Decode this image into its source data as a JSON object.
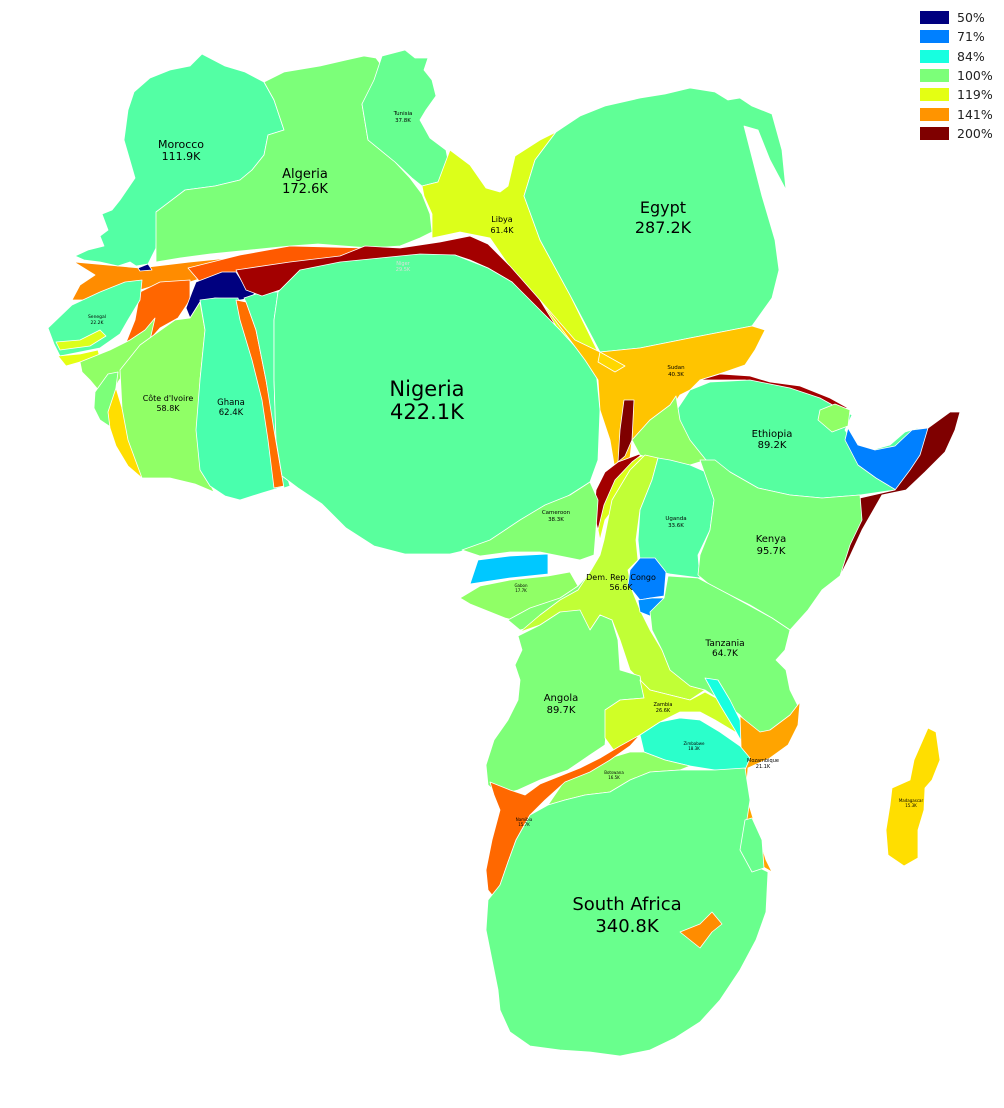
{
  "legend": {
    "items": [
      {
        "label": "50%",
        "color": "#00007f"
      },
      {
        "label": "71%",
        "color": "#0080ff"
      },
      {
        "label": "84%",
        "color": "#17ffe0"
      },
      {
        "label": "100%",
        "color": "#7cff79"
      },
      {
        "label": "119%",
        "color": "#e4ff13"
      },
      {
        "label": "141%",
        "color": "#ff9400"
      },
      {
        "label": "200%",
        "color": "#7f0000"
      }
    ]
  },
  "countries": [
    {
      "id": "nigeria",
      "name": "Nigeria",
      "value": "422.1K",
      "color": "#59ff9d"
    },
    {
      "id": "south-africa",
      "name": "South Africa",
      "value": "340.8K",
      "color": "#69ff8d"
    },
    {
      "id": "egypt",
      "name": "Egypt",
      "value": "287.2K",
      "color": "#60ff96"
    },
    {
      "id": "algeria",
      "name": "Algeria",
      "value": "172.6K",
      "color": "#7cff79"
    },
    {
      "id": "morocco",
      "name": "Morocco",
      "value": "111.9K",
      "color": "#53ffa4"
    },
    {
      "id": "kenya",
      "name": "Kenya",
      "value": "95.7K",
      "color": "#7cff79"
    },
    {
      "id": "angola",
      "name": "Angola",
      "value": "89.7K",
      "color": "#7eff78"
    },
    {
      "id": "ethiopia",
      "name": "Ethiopia",
      "value": "89.2K",
      "color": "#56ffa0"
    },
    {
      "id": "tanzania",
      "name": "Tanzania",
      "value": "64.7K",
      "color": "#7cff79"
    },
    {
      "id": "ghana",
      "name": "Ghana",
      "value": "62.4K",
      "color": "#49ffad"
    },
    {
      "id": "libya",
      "name": "Libya",
      "value": "61.4K",
      "color": "#dcff1a"
    },
    {
      "id": "cote-divoire",
      "name": "Côte d'Ivoire",
      "value": "58.8K",
      "color": "#90ff66"
    },
    {
      "id": "dr-congo",
      "name": "Dem. Rep. Congo",
      "value": "56.6K",
      "color": "#c1ff36"
    },
    {
      "id": "sudan",
      "name": "Sudan",
      "value": "40.3K",
      "color": "#ffc400"
    },
    {
      "id": "cameroon",
      "name": "Cameroon",
      "value": "38.3K",
      "color": "#83ff73"
    },
    {
      "id": "tunisia",
      "name": "Tunisia",
      "value": "37.8K",
      "color": "#66ff90"
    },
    {
      "id": "uganda",
      "name": "Uganda",
      "value": "33.6K",
      "color": "#53ffa4"
    },
    {
      "id": "niger",
      "name": "Niger",
      "value": "29.5K",
      "color": "#a30000"
    },
    {
      "id": "zambia",
      "name": "Zambia",
      "value": "26.6K",
      "color": "#d0ff26"
    },
    {
      "id": "senegal",
      "name": "Senegal",
      "value": "22.2K",
      "color": "#53ffa4"
    },
    {
      "id": "mozambique",
      "name": "Mozambique",
      "value": "21.1K",
      "color": "#ffa400"
    },
    {
      "id": "zimbabwe",
      "name": "Zimbabwe",
      "value": "18.3K",
      "color": "#2bffcb"
    },
    {
      "id": "gabon",
      "name": "Gabon",
      "value": "17.7K",
      "color": "#00c8ff"
    },
    {
      "id": "botswana",
      "name": "Botswana",
      "value": "16.5K",
      "color": "#90ff66"
    },
    {
      "id": "madagascar",
      "name": "Madagascar",
      "value": "15.3K",
      "color": "#ffde00"
    },
    {
      "id": "namibia",
      "name": "Namibia",
      "value": "15.7K",
      "color": "#ff6800"
    }
  ]
}
